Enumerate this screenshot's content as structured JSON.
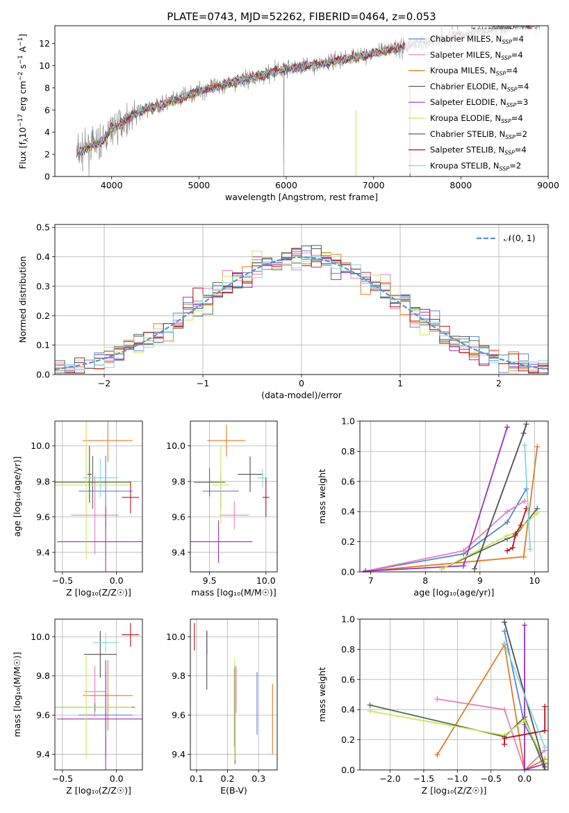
{
  "figure_title": "PLATE=0743, MJD=52262, FIBERID=0464, z=0.053",
  "colors": {
    "Chabrier MILES": "#5b7fd6",
    "Salpeter MILES": "#e47fbf",
    "Kroupa MILES": "#e07b24",
    "Chabrier ELODIE": "#4f6e4f",
    "Salpeter ELODIE": "#9b2fb6",
    "Kroupa ELODIE": "#cfe35a",
    "Chabrier STELIB": "#4d4d4d",
    "Salpeter STELIB": "#b0101a",
    "Kroupa STELIB": "#7fd8de",
    "data": "#808080"
  },
  "chart_data": [
    {
      "id": "spectrum",
      "type": "line",
      "title": "PLATE=0743, MJD=52262, FIBERID=0464, z=0.053",
      "xlabel": "wavelength [Angstrom, rest frame]",
      "ylabel_main": "Flux [f",
      "ylabel_sub": "λ",
      "ylabel_rest": "10",
      "ylabel_exp": "−17",
      "ylabel_units": " erg cm",
      "ylabel_units_exp": "−2",
      "ylabel_units2": " s",
      "ylabel_units2_exp": "−1",
      "ylabel_units3": " A",
      "ylabel_units3_exp": "−1",
      "ylabel_end": "]",
      "xlim": [
        3350,
        9000
      ],
      "ylim": [
        0,
        13.6
      ],
      "xticks": [
        4000,
        5000,
        6000,
        7000,
        8000,
        9000
      ],
      "yticks": [
        0,
        2,
        4,
        6,
        8,
        10,
        12
      ],
      "grid": false,
      "legend_position": "top-right",
      "legend": [
        {
          "name": "Chabrier MILES, N",
          "sub": "SSP",
          "tail": "=4"
        },
        {
          "name": "Salpeter MILES, N",
          "sub": "SSP",
          "tail": "=4"
        },
        {
          "name": "Kroupa MILES, N",
          "sub": "SSP",
          "tail": "=4"
        },
        {
          "name": "Chabrier ELODIE, N",
          "sub": "SSP",
          "tail": "=4"
        },
        {
          "name": "Salpeter ELODIE, N",
          "sub": "SSP",
          "tail": "=3"
        },
        {
          "name": "Kroupa ELODIE, N",
          "sub": "SSP",
          "tail": "=4"
        },
        {
          "name": "Chabrier STELIB, N",
          "sub": "SSP",
          "tail": "=2"
        },
        {
          "name": "Salpeter STELIB, N",
          "sub": "SSP",
          "tail": "=4"
        },
        {
          "name": "Kroupa STELIB, N",
          "sub": "SSP",
          "tail": "=2"
        }
      ],
      "continuum_points": [
        [
          3600,
          2.1
        ],
        [
          3900,
          3.2
        ],
        [
          4000,
          4.3
        ],
        [
          4300,
          5.8
        ],
        [
          4700,
          6.8
        ],
        [
          5000,
          7.7
        ],
        [
          5500,
          8.7
        ],
        [
          6000,
          9.7
        ],
        [
          6500,
          10.3
        ],
        [
          7000,
          11.1
        ],
        [
          7500,
          12.0
        ],
        [
          8000,
          12.8
        ],
        [
          8500,
          13.4
        ],
        [
          8800,
          13.7
        ]
      ],
      "model_xrange": [
        3600,
        7420
      ],
      "stelib_xrange": [
        3600,
        8900
      ]
    },
    {
      "id": "residuals",
      "type": "histogram",
      "xlabel": "(data-model)/error",
      "ylabel": "Normed distribution",
      "xlim": [
        -2.5,
        2.5
      ],
      "ylim": [
        0,
        0.51
      ],
      "xticks": [
        -2,
        -1,
        0,
        1,
        2
      ],
      "yticks": [
        0,
        0.1,
        0.2,
        0.3,
        0.4,
        0.5
      ],
      "grid": true,
      "legend_position": "top-right",
      "legend_label": "𝒩(0, 1)",
      "bin_width": 0.1
    },
    {
      "id": "age_vs_Z",
      "type": "errorbar",
      "xlabel": "Z [log₁₀(Z/Z☉)]",
      "ylabel": "age  [log₁₀(age/yr)]",
      "xlim": [
        -0.57,
        0.24
      ],
      "ylim": [
        9.29,
        10.14
      ],
      "xticks": [
        -0.5,
        0.0
      ],
      "yticks": [
        9.4,
        9.6,
        9.8,
        10.0
      ],
      "grid": true,
      "points": [
        {
          "series": "Chabrier MILES",
          "x": -0.1,
          "xerr": 0.25,
          "y": 9.745,
          "yerr": 0.2
        },
        {
          "series": "Salpeter MILES",
          "x": -0.2,
          "xerr": 0.22,
          "y": 9.61,
          "yerr": 0.22
        },
        {
          "series": "Kroupa MILES",
          "x": -0.08,
          "xerr": 0.23,
          "y": 10.03,
          "yerr": 0.12
        },
        {
          "series": "Chabrier ELODIE",
          "x": -0.22,
          "xerr": 0.35,
          "y": 9.795,
          "yerr": 0.15
        },
        {
          "series": "Salpeter ELODIE",
          "x": -0.1,
          "xerr": 0.45,
          "y": 9.46,
          "yerr": 0.2
        },
        {
          "series": "Kroupa ELODIE",
          "x": -0.28,
          "xerr": 0.42,
          "y": 9.78,
          "yerr": 0.42
        },
        {
          "series": "Chabrier STELIB",
          "x": -0.25,
          "xerr": 0.02,
          "y": 9.84,
          "yerr": 0.16
        },
        {
          "series": "Salpeter STELIB",
          "x": 0.13,
          "xerr": 0.08,
          "y": 9.71,
          "yerr": 0.09
        },
        {
          "series": "Kroupa STELIB",
          "x": -0.15,
          "xerr": 0.16,
          "y": 9.82,
          "yerr": 0.11
        }
      ]
    },
    {
      "id": "age_vs_mass",
      "type": "errorbar",
      "xlabel": "mass [log₁₀(M/M☉)]",
      "ylabel": "",
      "xlim": [
        9.33,
        10.1
      ],
      "ylim": [
        9.29,
        10.14
      ],
      "xticks": [
        9.5,
        10.0
      ],
      "yticks": [
        9.4,
        9.6,
        9.8,
        10.0
      ],
      "grid": true,
      "points": [
        {
          "series": "Chabrier MILES",
          "x": 9.6,
          "xerr": 0.16,
          "y": 9.745,
          "yerr": 0.1
        },
        {
          "series": "Salpeter MILES",
          "x": 9.72,
          "xerr": 0.13,
          "y": 9.61,
          "yerr": 0.08
        },
        {
          "series": "Kroupa MILES",
          "x": 9.65,
          "xerr": 0.17,
          "y": 10.03,
          "yerr": 0.09
        },
        {
          "series": "Chabrier ELODIE",
          "x": 9.5,
          "xerr": 0.14,
          "y": 9.795,
          "yerr": 0.08
        },
        {
          "series": "Salpeter ELODIE",
          "x": 9.58,
          "xerr": 0.3,
          "y": 9.46,
          "yerr": 0.12
        },
        {
          "series": "Kroupa ELODIE",
          "x": 9.6,
          "xerr": 0.08,
          "y": 9.78,
          "yerr": 0.22
        },
        {
          "series": "Chabrier STELIB",
          "x": 9.86,
          "xerr": 0.11,
          "y": 9.84,
          "yerr": 0.1
        },
        {
          "series": "Salpeter STELIB",
          "x": 10.0,
          "xerr": 0.03,
          "y": 9.71,
          "yerr": 0.11
        },
        {
          "series": "Kroupa STELIB",
          "x": 9.97,
          "xerr": 0.05,
          "y": 9.82,
          "yerr": 0.05
        }
      ]
    },
    {
      "id": "weight_vs_age",
      "type": "line",
      "xlabel": "age  [log₁₀(age/yr)]",
      "ylabel": "mass weight",
      "xlim": [
        6.8,
        10.25
      ],
      "ylim": [
        0,
        1.0
      ],
      "xticks": [
        7,
        8,
        9,
        10
      ],
      "yticks": [
        0.0,
        0.2,
        0.4,
        0.6,
        0.8,
        1.0
      ],
      "grid": true,
      "series": [
        {
          "name": "Chabrier MILES",
          "points": [
            [
              6.9,
              0.005
            ],
            [
              8.7,
              0.12
            ],
            [
              9.5,
              0.33
            ],
            [
              9.85,
              0.55
            ]
          ]
        },
        {
          "name": "Salpeter MILES",
          "points": [
            [
              6.9,
              0.005
            ],
            [
              8.7,
              0.14
            ],
            [
              9.5,
              0.4
            ],
            [
              9.82,
              0.47
            ]
          ]
        },
        {
          "name": "Kroupa MILES",
          "points": [
            [
              6.9,
              0.005
            ],
            [
              9.8,
              0.1
            ],
            [
              10.05,
              0.83
            ]
          ]
        },
        {
          "name": "Chabrier ELODIE",
          "points": [
            [
              8.3,
              0.02
            ],
            [
              9.5,
              0.22
            ],
            [
              9.65,
              0.24
            ],
            [
              10.05,
              0.42
            ]
          ]
        },
        {
          "name": "Salpeter ELODIE",
          "points": [
            [
              6.9,
              0.005
            ],
            [
              8.7,
              0.04
            ],
            [
              9.5,
              0.96
            ]
          ]
        },
        {
          "name": "Kroupa ELODIE",
          "points": [
            [
              8.3,
              0.02
            ],
            [
              9.5,
              0.24
            ],
            [
              9.65,
              0.26
            ],
            [
              10.05,
              0.39
            ]
          ]
        },
        {
          "name": "Chabrier STELIB",
          "points": [
            [
              8.9,
              0.02
            ],
            [
              9.8,
              0.92
            ],
            [
              9.85,
              0.98
            ]
          ]
        },
        {
          "name": "Salpeter STELIB",
          "points": [
            [
              9.5,
              0.14
            ],
            [
              9.6,
              0.16
            ],
            [
              9.65,
              0.25
            ],
            [
              9.75,
              0.31
            ],
            [
              9.85,
              0.42
            ]
          ]
        },
        {
          "name": "Kroupa STELIB",
          "points": [
            [
              9.82,
              0.84
            ],
            [
              9.92,
              0.15
            ]
          ]
        }
      ]
    },
    {
      "id": "mass_vs_Z",
      "type": "errorbar",
      "xlabel": "Z [log₁₀(Z/Z☉)]",
      "ylabel": "mass [log₁₀(M/M☉)]",
      "xlim": [
        -0.57,
        0.24
      ],
      "ylim": [
        9.32,
        10.09
      ],
      "xticks": [
        -0.5,
        0.0
      ],
      "yticks": [
        9.4,
        9.6,
        9.8,
        10.0
      ],
      "grid": true,
      "points": [
        {
          "series": "Chabrier MILES",
          "x": -0.1,
          "xerr": 0.25,
          "y": 9.6,
          "yerr": 0.22
        },
        {
          "series": "Salpeter MILES",
          "x": -0.2,
          "xerr": 0.1,
          "y": 9.72,
          "yerr": 0.13
        },
        {
          "series": "Kroupa MILES",
          "x": -0.08,
          "xerr": 0.23,
          "y": 9.7,
          "yerr": 0.18
        },
        {
          "series": "Chabrier ELODIE",
          "x": -0.2,
          "xerr": 0.37,
          "y": 9.64,
          "yerr": 0.02
        },
        {
          "series": "Salpeter ELODIE",
          "x": -0.1,
          "xerr": 0.45,
          "y": 9.58,
          "yerr": 0.3
        },
        {
          "series": "Kroupa ELODIE",
          "x": -0.28,
          "xerr": 0.42,
          "y": 9.64,
          "yerr": 0.26
        },
        {
          "series": "Chabrier STELIB",
          "x": -0.15,
          "xerr": 0.15,
          "y": 9.91,
          "yerr": 0.12
        },
        {
          "series": "Salpeter STELIB",
          "x": 0.13,
          "xerr": 0.08,
          "y": 10.01,
          "yerr": 0.06
        },
        {
          "series": "Kroupa STELIB",
          "x": -0.1,
          "xerr": 0.12,
          "y": 9.97,
          "yerr": 0.05
        }
      ]
    },
    {
      "id": "mass_vs_EBV",
      "type": "errorbar",
      "xlabel": "E(B-V)",
      "ylabel": "",
      "xlim": [
        0.08,
        0.36
      ],
      "ylim": [
        9.32,
        10.09
      ],
      "xticks": [
        0.1,
        0.2,
        0.3
      ],
      "yticks": [
        9.4,
        9.6,
        9.8,
        10.0
      ],
      "grid": true,
      "points": [
        {
          "series": "Chabrier MILES",
          "x": 0.295,
          "xerr": 0.0,
          "y": 9.66,
          "yerr": 0.16
        },
        {
          "series": "Salpeter MILES",
          "x": 0.228,
          "xerr": 0.0,
          "y": 9.73,
          "yerr": 0.12
        },
        {
          "series": "Kroupa MILES",
          "x": 0.345,
          "xerr": 0.0,
          "y": 9.58,
          "yerr": 0.18
        },
        {
          "series": "Chabrier ELODIE",
          "x": 0.222,
          "xerr": 0.0,
          "y": 9.64,
          "yerr": 0.2
        },
        {
          "series": "Salpeter ELODIE",
          "x": 0.224,
          "xerr": 0.0,
          "y": 9.6,
          "yerr": 0.25
        },
        {
          "series": "Kroupa ELODIE",
          "x": 0.223,
          "xerr": 0.0,
          "y": 9.63,
          "yerr": 0.26
        },
        {
          "series": "Chabrier STELIB",
          "x": 0.133,
          "xerr": 0.0,
          "y": 9.88,
          "yerr": 0.15
        },
        {
          "series": "Salpeter STELIB",
          "x": 0.093,
          "xerr": 0.0,
          "y": 10.0,
          "yerr": 0.07
        },
        {
          "series": "Kroupa STELIB",
          "x": 0.135,
          "xerr": 0.0,
          "y": 9.97,
          "yerr": 0.06
        }
      ]
    },
    {
      "id": "weight_vs_Z",
      "type": "line",
      "xlabel": "Z [log₁₀(Z/Z☉)]",
      "ylabel": "mass weight",
      "xlim": [
        -2.45,
        0.35
      ],
      "ylim": [
        0,
        1.0
      ],
      "xticks": [
        -2.0,
        -1.5,
        -1.0,
        -0.5,
        0.0
      ],
      "yticks": [
        0.0,
        0.2,
        0.4,
        0.6,
        0.8,
        1.0
      ],
      "grid": true,
      "series": [
        {
          "name": "Chabrier MILES",
          "points": [
            [
              -0.3,
              0.92
            ],
            [
              0.0,
              0.3
            ],
            [
              0.3,
              0.05
            ]
          ]
        },
        {
          "name": "Salpeter MILES",
          "points": [
            [
              -1.3,
              0.47
            ],
            [
              -0.3,
              0.4
            ],
            [
              0.0,
              0.0
            ],
            [
              0.3,
              0.13
            ]
          ]
        },
        {
          "name": "Kroupa MILES",
          "points": [
            [
              -1.3,
              0.1
            ],
            [
              -0.3,
              0.83
            ],
            [
              0.0,
              0.0
            ],
            [
              0.3,
              0.07
            ]
          ]
        },
        {
          "name": "Chabrier ELODIE",
          "points": [
            [
              -2.3,
              0.43
            ],
            [
              -0.3,
              0.22
            ],
            [
              0.0,
              0.35
            ],
            [
              0.3,
              0.0
            ]
          ]
        },
        {
          "name": "Salpeter ELODIE",
          "points": [
            [
              0.0,
              0.96
            ],
            [
              0.0,
              0.0
            ],
            [
              0.3,
              0.04
            ]
          ]
        },
        {
          "name": "Kroupa ELODIE",
          "points": [
            [
              -2.3,
              0.39
            ],
            [
              -0.3,
              0.23
            ],
            [
              0.0,
              0.33
            ],
            [
              0.3,
              0.05
            ]
          ]
        },
        {
          "name": "Chabrier STELIB",
          "points": [
            [
              -0.3,
              0.98
            ],
            [
              0.3,
              0.02
            ]
          ]
        },
        {
          "name": "Salpeter STELIB",
          "points": [
            [
              -0.3,
              0.17
            ],
            [
              -0.3,
              0.21
            ],
            [
              0.3,
              0.26
            ],
            [
              0.3,
              0.42
            ]
          ]
        },
        {
          "name": "Kroupa STELIB",
          "points": [
            [
              -0.3,
              0.84
            ],
            [
              0.3,
              0.15
            ]
          ]
        }
      ]
    }
  ]
}
